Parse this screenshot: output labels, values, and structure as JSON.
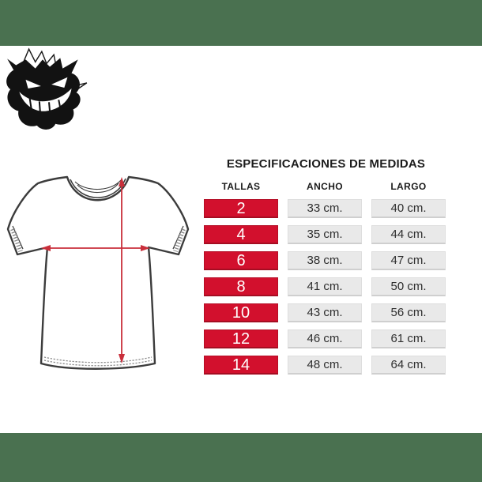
{
  "page": {
    "background_color": "#ffffff",
    "band_color": "#4a7150"
  },
  "logo": {
    "icon": "gengar-silhouette-icon"
  },
  "size_chart": {
    "title": "ESPECIFICACIONES DE MEDIDAS",
    "columns": [
      "TALLAS",
      "ANCHO",
      "LARGO"
    ],
    "rows": [
      {
        "talla": "2",
        "ancho": "33 cm.",
        "largo": "40 cm."
      },
      {
        "talla": "4",
        "ancho": "35 cm.",
        "largo": "44 cm."
      },
      {
        "talla": "6",
        "ancho": "38 cm.",
        "largo": "47 cm."
      },
      {
        "talla": "8",
        "ancho": "41 cm.",
        "largo": "50 cm."
      },
      {
        "talla": "10",
        "ancho": "43 cm.",
        "largo": "56 cm."
      },
      {
        "talla": "12",
        "ancho": "46 cm.",
        "largo": "61 cm."
      },
      {
        "talla": "14",
        "ancho": "48 cm.",
        "largo": "64 cm."
      }
    ],
    "colors": {
      "size_cell": "#d2102d",
      "measure_cell": "#e9e9e9",
      "size_text": "#ffffff",
      "measure_text": "#2e2e2e"
    }
  },
  "diagram": {
    "outline_color": "#3c3c3c",
    "arrow_color": "#c92f3b"
  }
}
